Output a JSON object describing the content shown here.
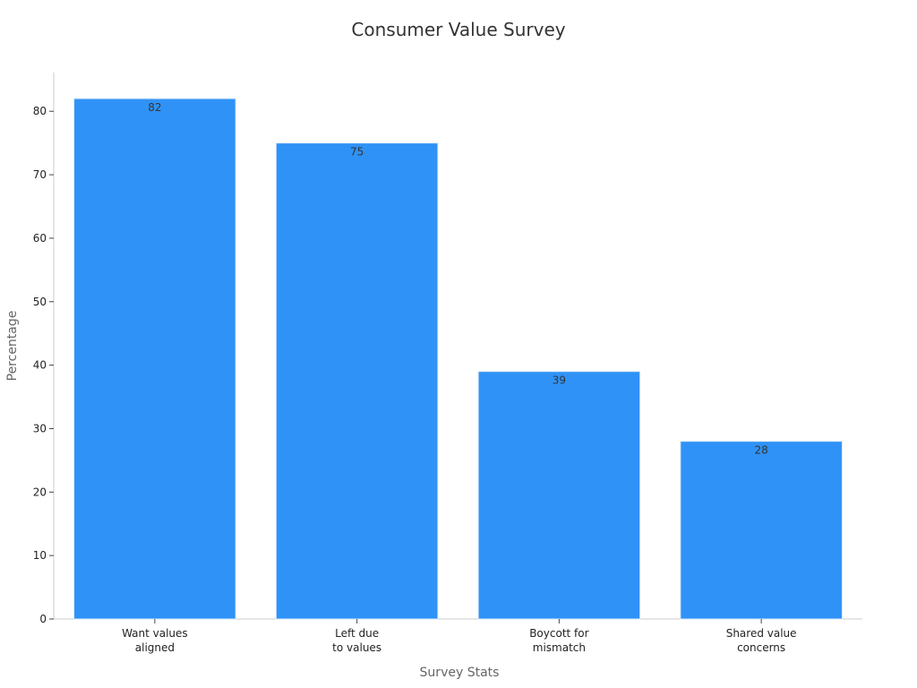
{
  "chart_data": {
    "type": "bar",
    "title": "Consumer Value Survey",
    "xlabel": "Survey Stats",
    "ylabel": "Percentage",
    "categories": [
      [
        "Want values",
        "aligned"
      ],
      [
        "Left due",
        "to values"
      ],
      [
        "Boycott for",
        "mismatch"
      ],
      [
        "Shared value",
        "concerns"
      ]
    ],
    "values": [
      82,
      75,
      39,
      28
    ],
    "ylim": [
      0,
      86.1
    ],
    "yticks": [
      0,
      10,
      20,
      30,
      40,
      50,
      60,
      70,
      80
    ],
    "grid": false,
    "bar_color": "#2f92f7",
    "bar_edge_color": "#dbe9f7",
    "axis_color": "#cccccc"
  }
}
